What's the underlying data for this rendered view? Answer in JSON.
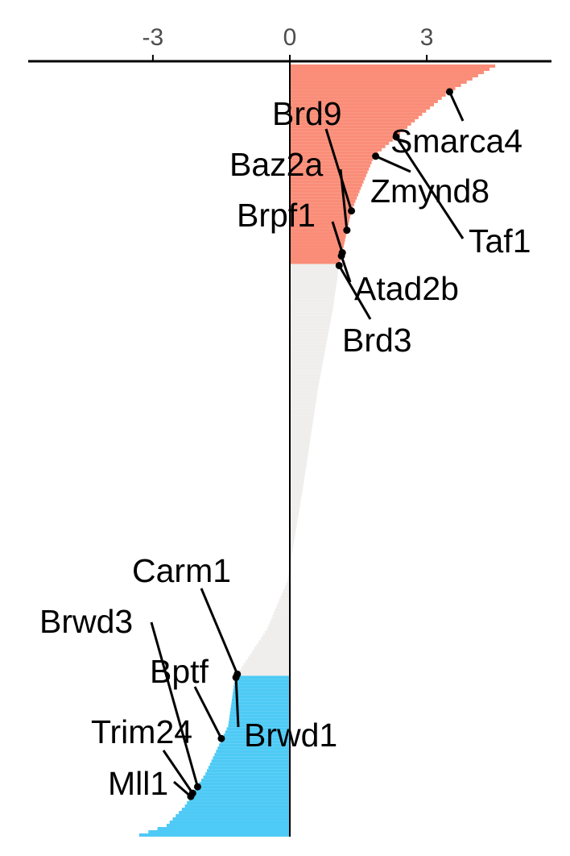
{
  "chart_data": {
    "type": "bar",
    "orientation": "horizontal",
    "x_axis": {
      "position": "top",
      "ticks": [
        -3,
        0,
        3
      ],
      "tick_labels": [
        "-3",
        "0",
        "3"
      ],
      "xlim": [
        -5.8,
        5.7
      ]
    },
    "grid": false,
    "legend": "none",
    "colors": {
      "up": "#fa8d78",
      "neutral": "#efeeec",
      "down": "#4dcaf5",
      "axis": "#000000",
      "tick_text": "#4d4d4d"
    },
    "bar_count": 240,
    "thresholds": {
      "up_rank_end": 62,
      "down_rank_start": 190
    },
    "highlighted_genes": [
      {
        "name": "Smarca4",
        "value": 3.5
      },
      {
        "name": "Taf1",
        "value": 2.33
      },
      {
        "name": "Zmynd8",
        "value": 1.88
      },
      {
        "name": "Brd9",
        "value": 1.35
      },
      {
        "name": "Baz2a",
        "value": 1.25
      },
      {
        "name": "Brpf1",
        "value": 1.15
      },
      {
        "name": "Atad2b",
        "value": 1.13
      },
      {
        "name": "Brd3",
        "value": 1.08
      },
      {
        "name": "Carm1",
        "value": -1.15
      },
      {
        "name": "Brwd1",
        "value": -1.18
      },
      {
        "name": "Bptf",
        "value": -1.5
      },
      {
        "name": "Brwd3",
        "value": -2.02
      },
      {
        "name": "Trim24",
        "value": -2.13
      },
      {
        "name": "Mll1",
        "value": -2.17
      }
    ]
  }
}
